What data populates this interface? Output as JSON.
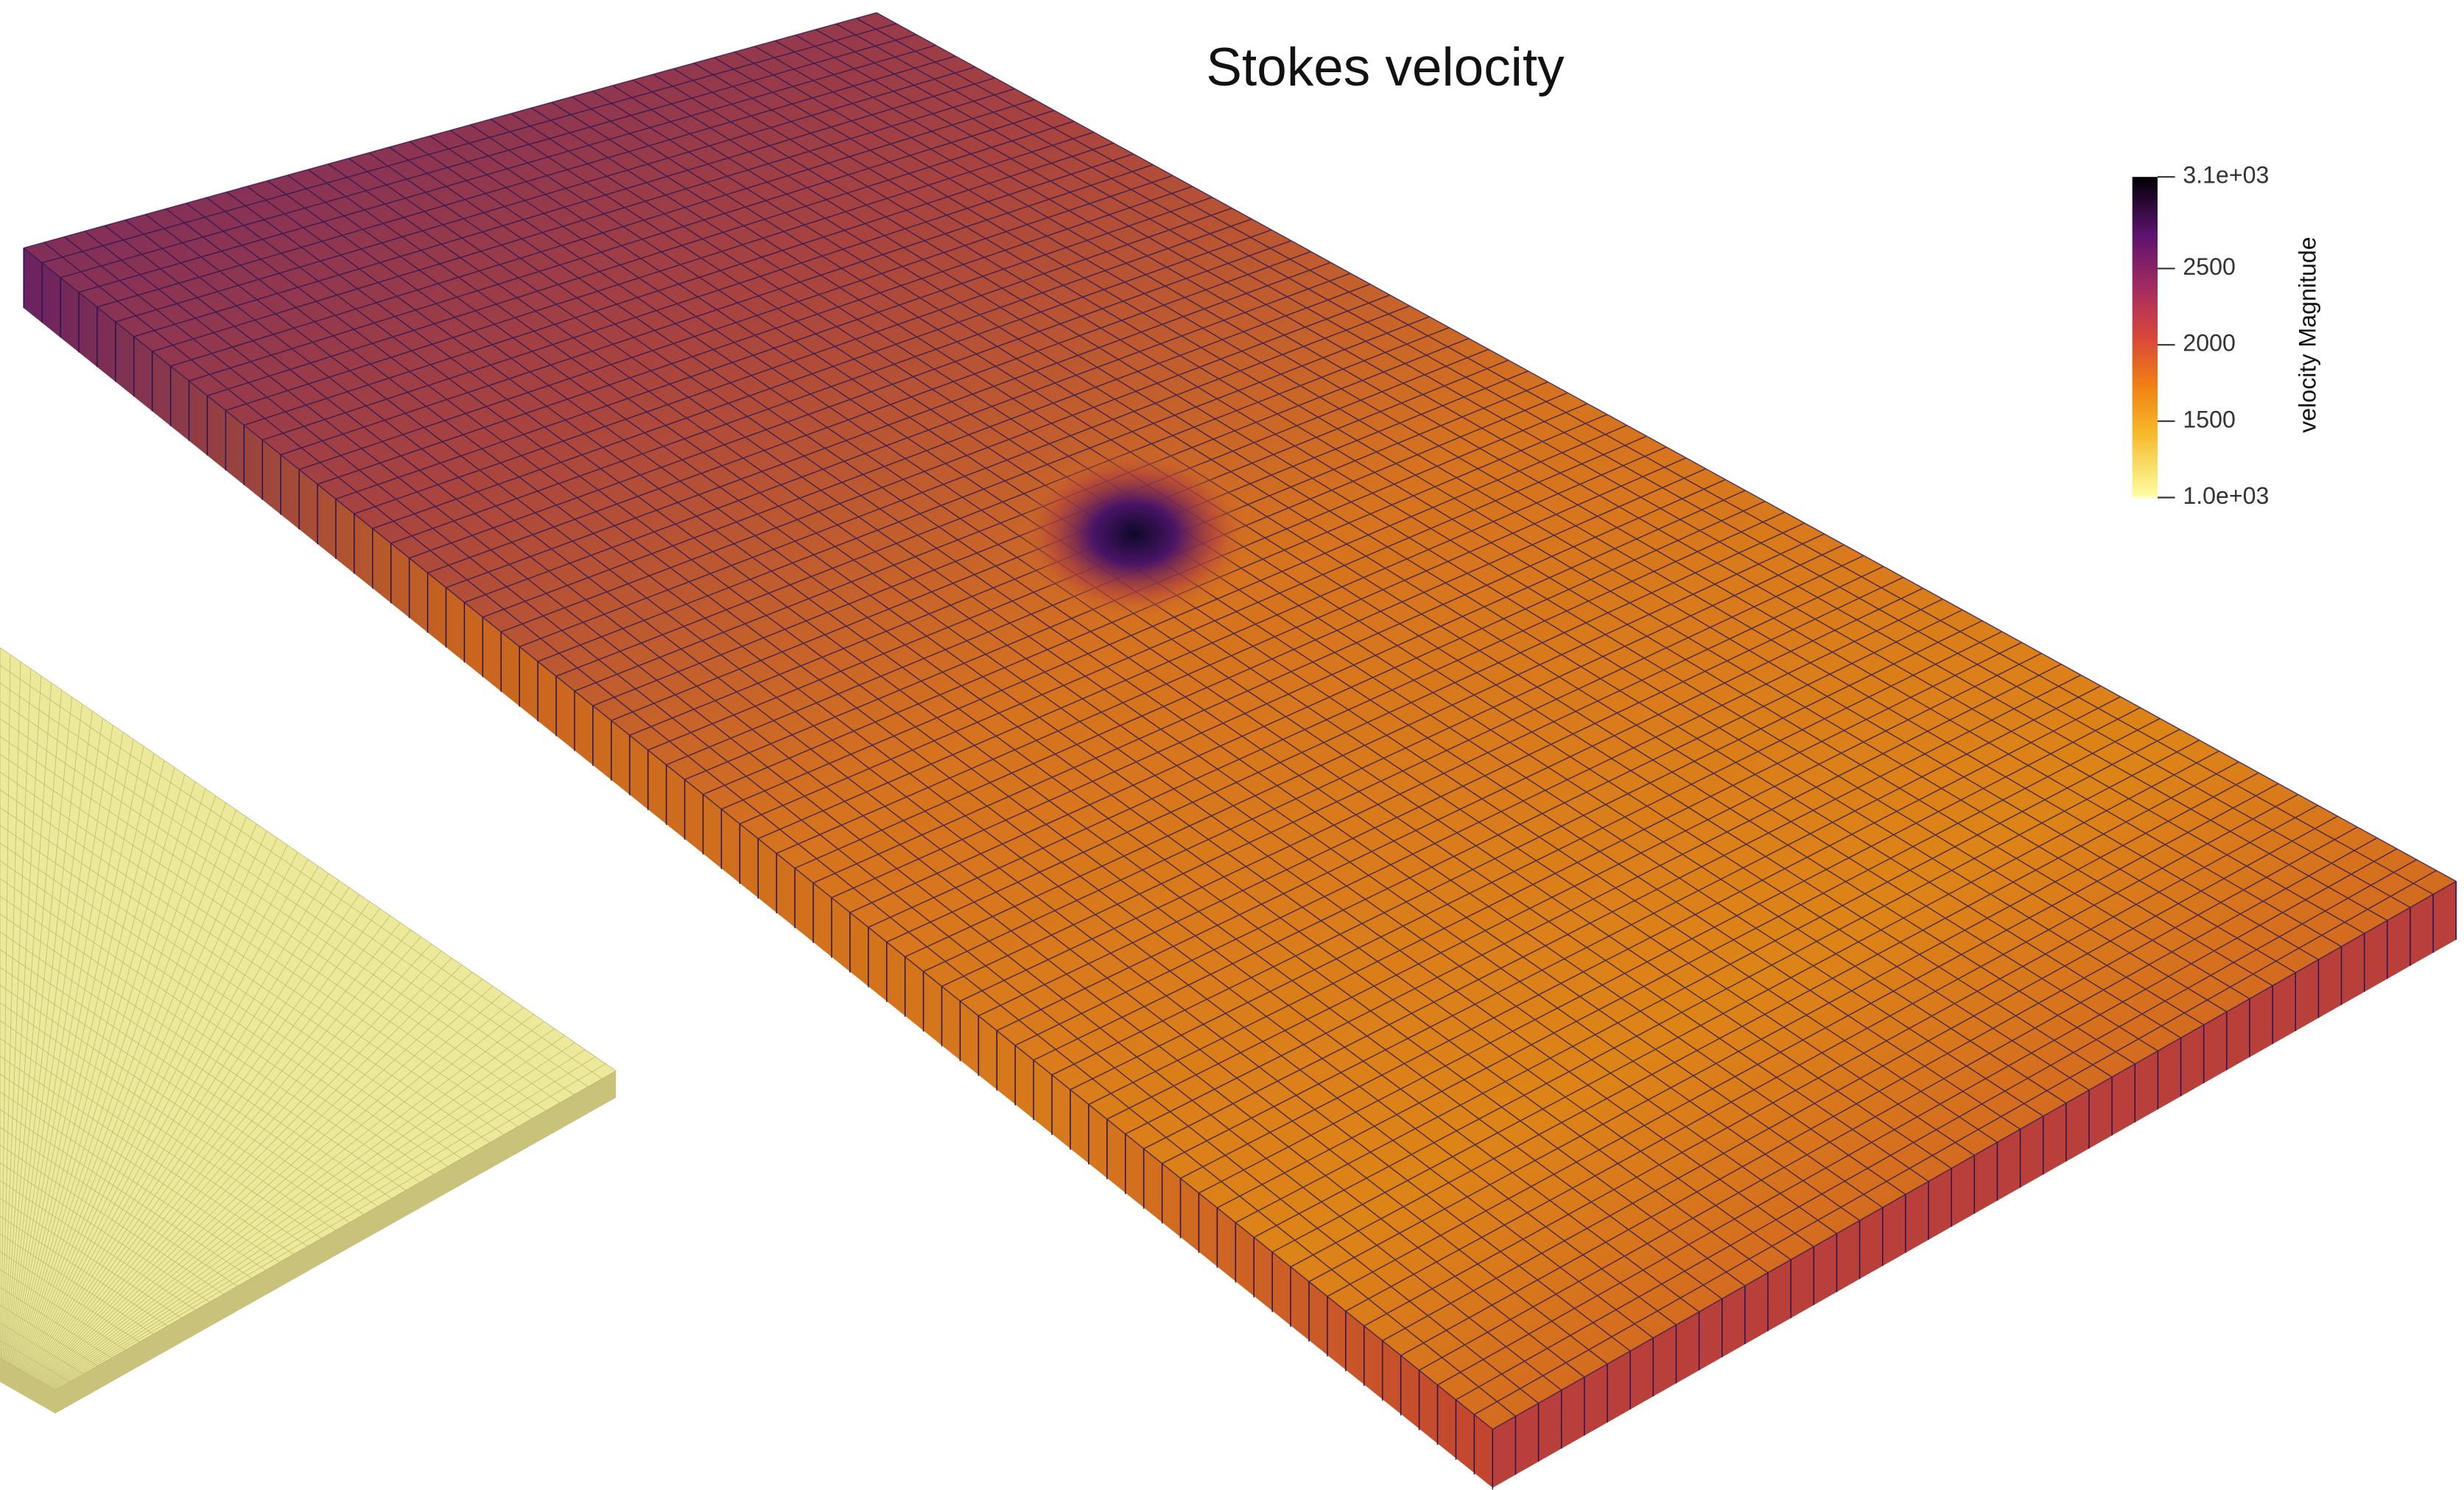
{
  "title": "Stokes velocity",
  "colorbar": {
    "title": "velocity Magnitude",
    "range": [
      1000,
      3100
    ],
    "ticks": [
      {
        "value": 3100,
        "label": "3.1e+03"
      },
      2500,
      2000,
      1500,
      {
        "value": 1000,
        "label": "1.0e+03"
      }
    ]
  }
}
